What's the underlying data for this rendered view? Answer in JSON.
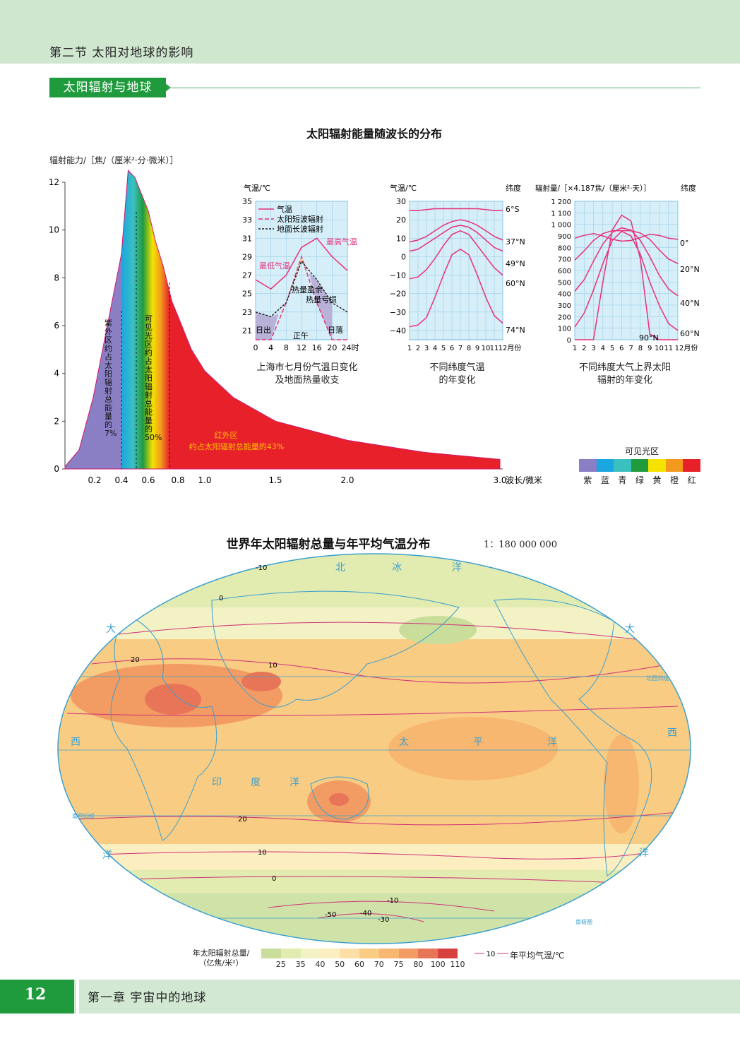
{
  "header": {
    "section_title": "第二节  太阳对地球的影响",
    "topic_tab": "太阳辐射与地球"
  },
  "spectrum_figure": {
    "title": "太阳辐射能量随波长的分布",
    "ylabel": "辐射能力/［焦/（厘米²·分·微米）］",
    "xlabel": "波长/微米",
    "y_ticks": [
      "0",
      "2",
      "4",
      "6",
      "8",
      "10",
      "12"
    ],
    "x_ticks": [
      "0.2",
      "0.4",
      "0.6",
      "0.8",
      "1.0",
      "1.5",
      "2.0",
      "3.0"
    ],
    "uv_label": "紫外区 约占太阳辐射总能量的7%",
    "visible_label": "可见光区 约占太阳辐射总能量的50%",
    "ir_label_1": "红外区",
    "ir_label_2": "约占太阳辐射总能量的43%",
    "legend_title": "可见光区",
    "legend_items": [
      {
        "label": "紫",
        "color": "#8a7fc4"
      },
      {
        "label": "蓝",
        "color": "#1aa6e0"
      },
      {
        "label": "青",
        "color": "#3bc0c0"
      },
      {
        "label": "绿",
        "color": "#1f9a3c"
      },
      {
        "label": "黄",
        "color": "#f5e200"
      },
      {
        "label": "橙",
        "color": "#f39a1e"
      },
      {
        "label": "红",
        "color": "#e8202a"
      }
    ]
  },
  "chart_data": [
    {
      "type": "area",
      "title": "太阳辐射能量随波长的分布",
      "xlabel": "波长/微米",
      "ylabel": "辐射能力/［焦/（厘米²·分·微米）］",
      "x": [
        0.2,
        0.25,
        0.3,
        0.35,
        0.4,
        0.45,
        0.5,
        0.55,
        0.6,
        0.65,
        0.7,
        0.76,
        0.8,
        0.9,
        1.0,
        1.2,
        1.5,
        2.0,
        2.5,
        3.0
      ],
      "values": [
        0.1,
        0.8,
        3.0,
        6.0,
        9.0,
        12.5,
        12.2,
        11.5,
        10.8,
        9.5,
        8.5,
        7.0,
        6.4,
        5.0,
        4.1,
        3.0,
        2.0,
        1.2,
        0.7,
        0.4
      ],
      "ylim": [
        0,
        12.5
      ],
      "xlim": [
        0.2,
        3.0
      ],
      "regions": [
        {
          "name": "紫外区",
          "share": 7
        },
        {
          "name": "可见光区",
          "share": 50
        },
        {
          "name": "红外区",
          "share": 43
        }
      ]
    },
    {
      "type": "line",
      "title": "上海市七月份气温日变化及地面热量收支",
      "ylabel": "气温/℃",
      "x_unit": "时",
      "x": [
        0,
        4,
        8,
        12,
        16,
        20,
        24
      ],
      "ylim": [
        20,
        35
      ],
      "series": [
        {
          "name": "气温",
          "values": [
            26.5,
            25.5,
            27,
            30,
            31,
            29,
            27.5
          ]
        },
        {
          "name": "太阳短波辐射",
          "values": [
            20,
            20,
            24,
            29,
            24,
            20,
            20
          ]
        },
        {
          "name": "地面长波辐射",
          "values": [
            23,
            22.5,
            24,
            28.5,
            26.5,
            24,
            23
          ]
        }
      ],
      "labels": [
        "最低气温",
        "最高气温",
        "热量盈余",
        "热量亏损",
        "日出",
        "正午",
        "日落"
      ],
      "y_ticks": [
        "21",
        "23",
        "25",
        "27",
        "29",
        "31",
        "33",
        "35"
      ],
      "x_ticks": [
        "0",
        "4",
        "8",
        "12",
        "16",
        "20",
        "24时"
      ],
      "legend": [
        "气温",
        "太阳短波辐射",
        "地面长波辐射"
      ],
      "caption_1": "上海市七月份气温日变化",
      "caption_2": "及地面热量收支"
    },
    {
      "type": "line",
      "title": "不同纬度气温的年变化",
      "ylabel": "气温/℃",
      "y2label": "纬度",
      "x": [
        1,
        2,
        3,
        4,
        5,
        6,
        7,
        8,
        9,
        10,
        11,
        12
      ],
      "ylim": [
        -45,
        30
      ],
      "series": [
        {
          "name": "6°S",
          "values": [
            25,
            25,
            25.5,
            26,
            26,
            26,
            26,
            26,
            26,
            25.5,
            25,
            25
          ]
        },
        {
          "name": "37°N",
          "values": [
            8,
            9,
            11,
            14,
            17,
            19,
            20,
            19,
            17,
            14,
            11,
            9
          ]
        },
        {
          "name": "49°N",
          "values": [
            3,
            4,
            7,
            10,
            13,
            16,
            17,
            16,
            13,
            9,
            5,
            3
          ]
        },
        {
          "name": "60°N",
          "values": [
            -12,
            -11,
            -7,
            -1,
            6,
            12,
            14,
            12,
            6,
            0,
            -6,
            -10
          ]
        },
        {
          "name": "74°N",
          "values": [
            -38,
            -37,
            -33,
            -22,
            -10,
            1,
            4,
            1,
            -10,
            -22,
            -32,
            -36
          ]
        }
      ],
      "y_ticks": [
        "30",
        "20",
        "10",
        "0",
        "−10",
        "−20",
        "−30",
        "−40"
      ],
      "x_ticks": [
        "1",
        "2",
        "3",
        "4",
        "5",
        "6",
        "7",
        "8",
        "9",
        "10",
        "11",
        "12月份"
      ],
      "caption_1": "不同纬度气温",
      "caption_2": "的年变化"
    },
    {
      "type": "line",
      "title": "不同纬度大气上界太阳辐射的年变化",
      "ylabel": "辐射量/［×4.187焦/（厘米²·天）］",
      "y2label": "纬度",
      "x": [
        1,
        2,
        3,
        4,
        5,
        6,
        7,
        8,
        9,
        10,
        11,
        12
      ],
      "ylim": [
        0,
        1200
      ],
      "series": [
        {
          "name": "0°",
          "values": [
            880,
            905,
            920,
            900,
            870,
            855,
            860,
            885,
            915,
            905,
            880,
            870
          ]
        },
        {
          "name": "20°N",
          "values": [
            690,
            770,
            860,
            920,
            945,
            945,
            945,
            925,
            870,
            780,
            700,
            660
          ]
        },
        {
          "name": "40°N",
          "values": [
            420,
            520,
            680,
            830,
            930,
            970,
            950,
            860,
            720,
            560,
            440,
            380
          ]
        },
        {
          "name": "60°N",
          "values": [
            110,
            230,
            430,
            660,
            860,
            940,
            900,
            740,
            500,
            300,
            140,
            80
          ]
        },
        {
          "name": "90°N",
          "values": [
            0,
            0,
            0,
            500,
            950,
            1080,
            1030,
            700,
            50,
            0,
            0,
            0
          ]
        }
      ],
      "y_ticks": [
        "0",
        "100",
        "200",
        "300",
        "400",
        "500",
        "600",
        "700",
        "800",
        "900",
        "1 000",
        "1 100",
        "1 200"
      ],
      "x_ticks": [
        "1",
        "2",
        "3",
        "4",
        "5",
        "6",
        "7",
        "8",
        "9",
        "10",
        "11",
        "12月份"
      ],
      "caption_1": "不同纬度大气上界太阳",
      "caption_2": "辐射的年变化"
    }
  ],
  "map": {
    "title": "世界年太阳辐射总量与年平均气温分布",
    "scale": "1：180 000 000",
    "ocean_labels": [
      "北",
      "冰",
      "洋",
      "大",
      "西",
      "洋",
      "印",
      "度",
      "洋",
      "太",
      "平",
      "洋",
      "大",
      "西",
      "洋"
    ],
    "line_labels": [
      "北回归线",
      "南回归线",
      "南极圈"
    ],
    "isotherm_values": [
      "-10",
      "0",
      "10",
      "20",
      "0",
      "-10",
      "-50",
      "-40",
      "-30",
      "10",
      "20"
    ],
    "legend_title_1": "年太阳辐射总量/",
    "legend_title_2": "（亿焦/米²）",
    "legend_values": [
      "25",
      "35",
      "40",
      "50",
      "60",
      "70",
      "75",
      "80",
      "100",
      "110"
    ],
    "legend_colors": [
      "#c8de9a",
      "#e2ebb0",
      "#f2f2c4",
      "#fbeec0",
      "#fcdfa6",
      "#f9cc84",
      "#f7b770",
      "#f29c64",
      "#e87558",
      "#d8423e"
    ],
    "isotherm_legend_value": "10",
    "isotherm_legend_label": "年平均气温/℃"
  },
  "footer": {
    "page_number": "12",
    "chapter_title": "第一章  宇宙中的地球"
  }
}
